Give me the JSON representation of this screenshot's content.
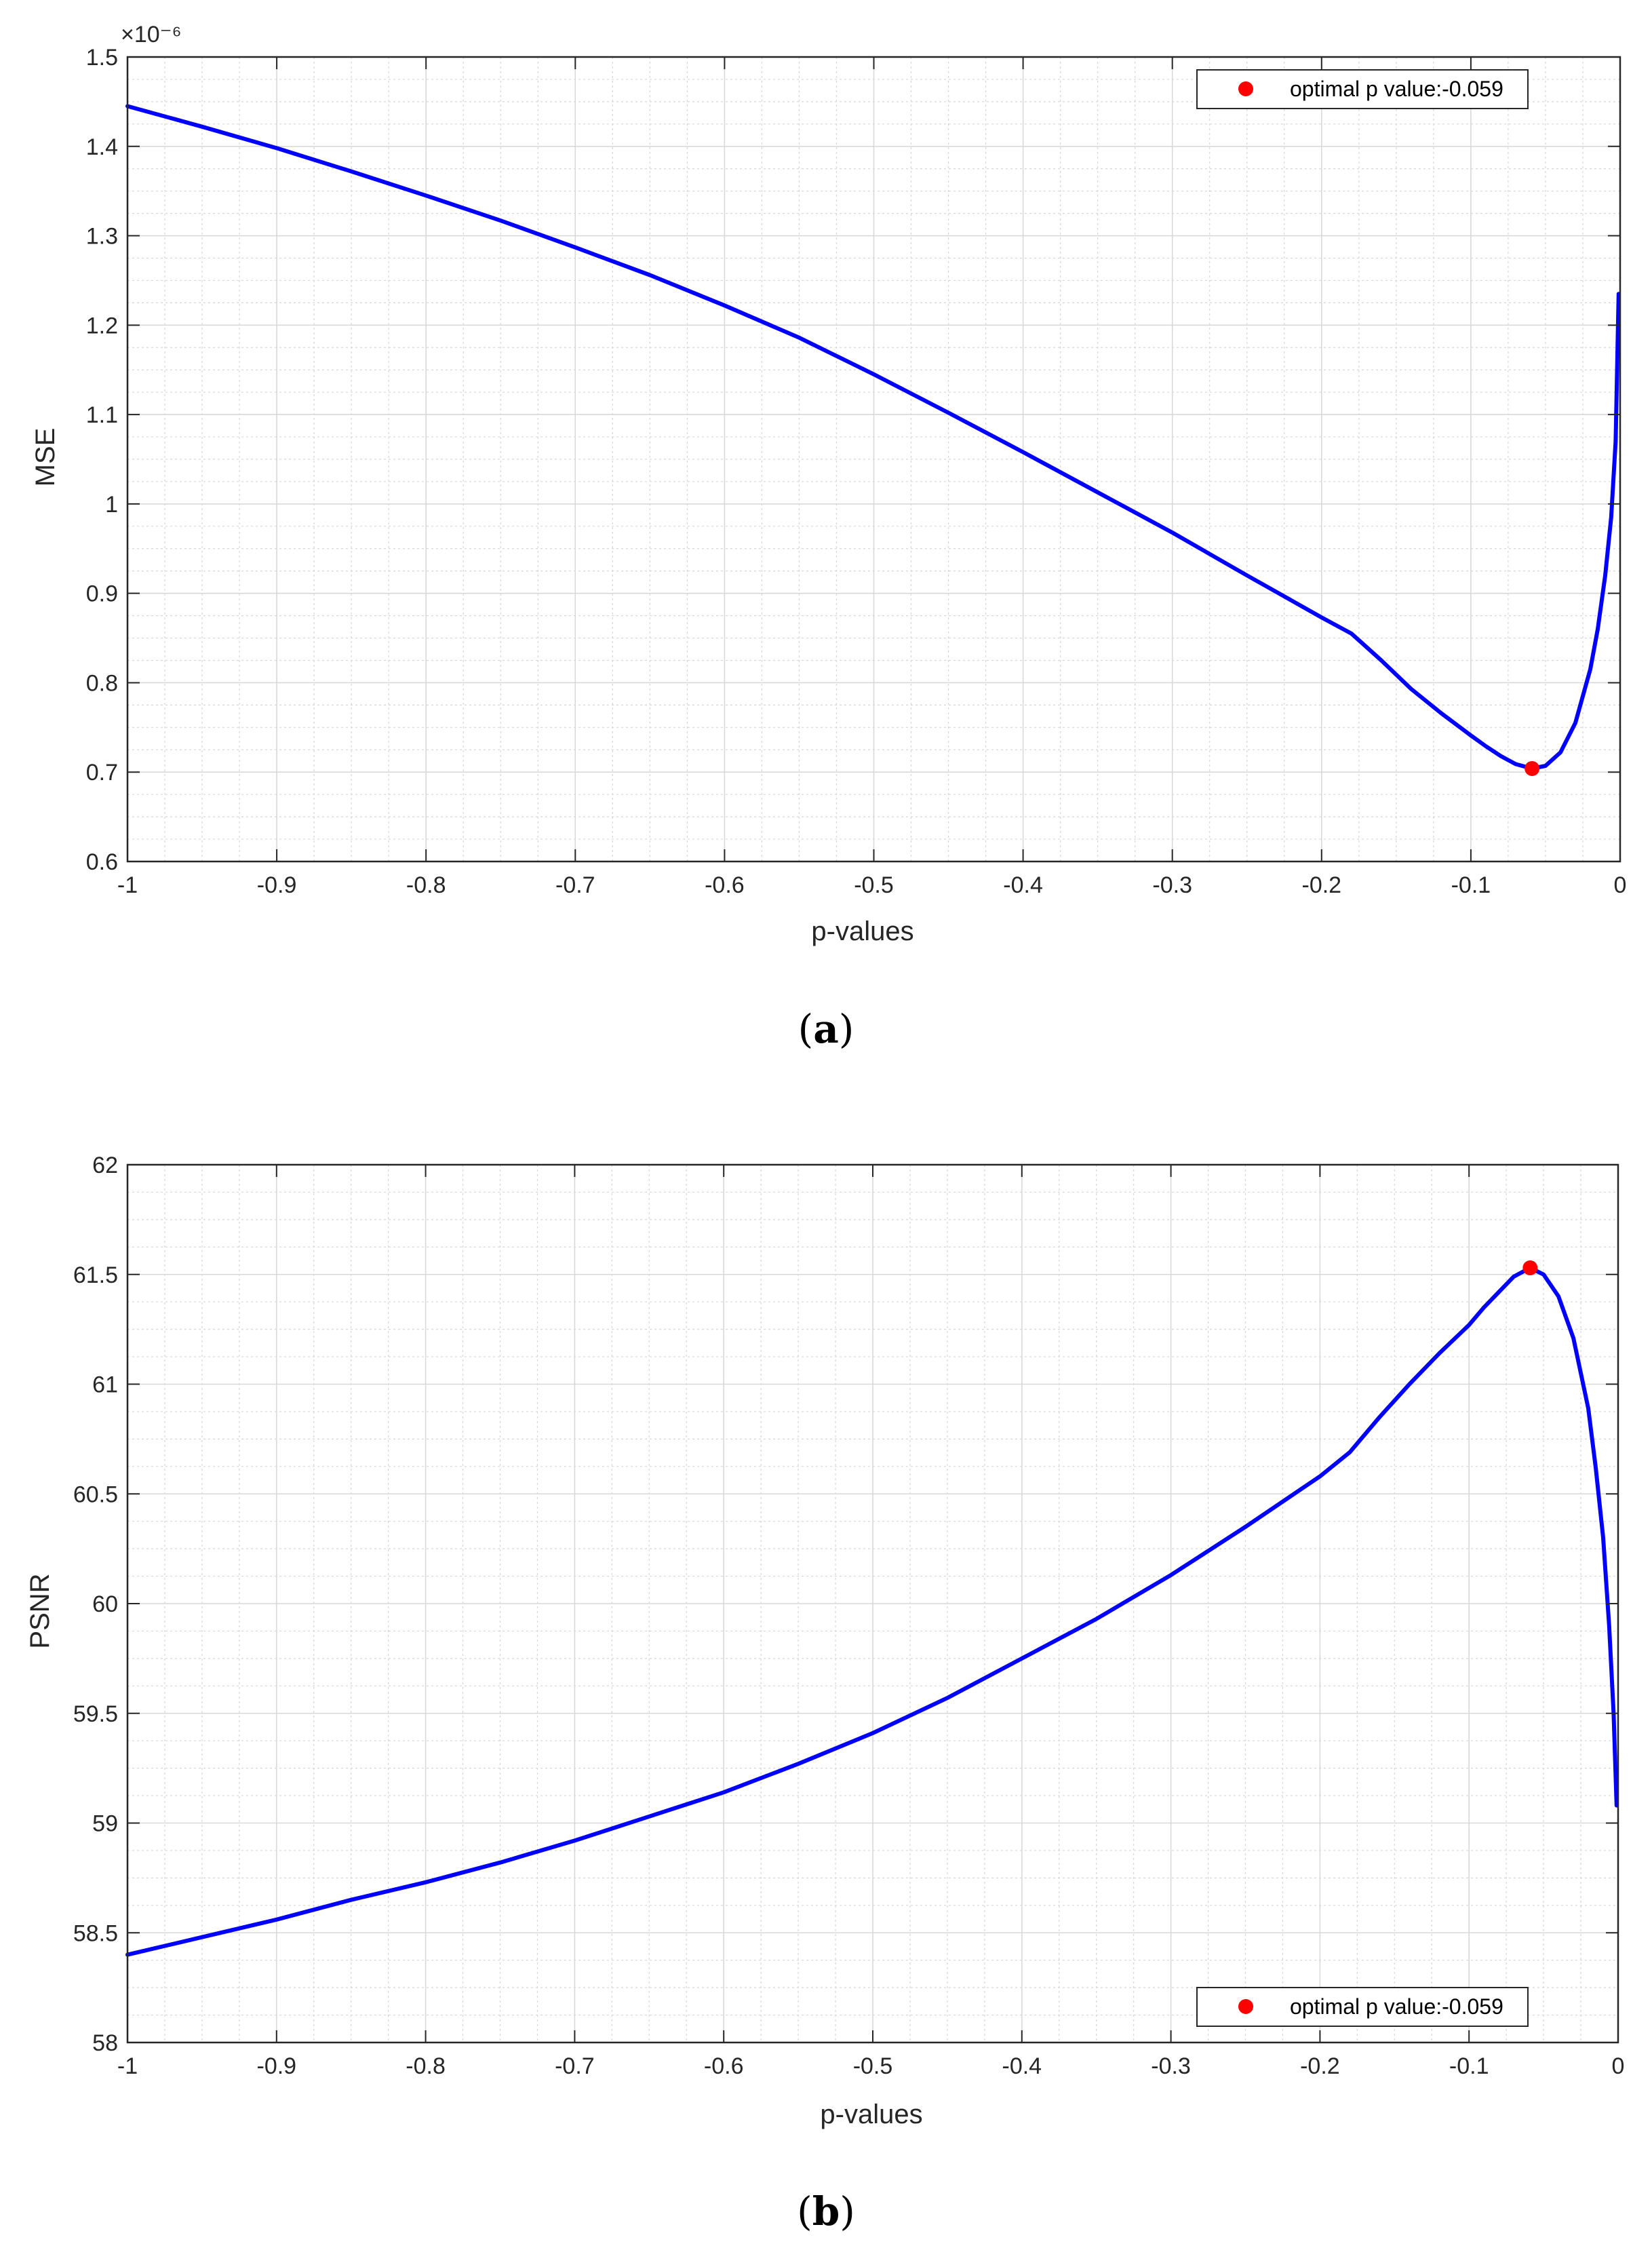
{
  "chart_data": [
    {
      "panel": "(a)",
      "type": "line",
      "xlabel": "p-values",
      "ylabel": "MSE",
      "y_exponent_label": "×10⁻⁶",
      "xlim": [
        -1,
        0
      ],
      "ylim": [
        0.6,
        1.5
      ],
      "xticks": [
        -1,
        -0.9,
        -0.8,
        -0.7,
        -0.6,
        -0.5,
        -0.4,
        -0.3,
        -0.2,
        -0.1,
        0
      ],
      "xtick_labels": [
        "-1",
        "-0.9",
        "-0.8",
        "-0.7",
        "-0.6",
        "-0.5",
        "-0.4",
        "-0.3",
        "-0.2",
        "-0.1",
        "0"
      ],
      "yticks": [
        0.6,
        0.7,
        0.8,
        0.9,
        1,
        1.1,
        1.2,
        1.3,
        1.4,
        1.5
      ],
      "ytick_labels": [
        "0.6",
        "0.7",
        "0.8",
        "0.9",
        "1",
        "1.1",
        "1.2",
        "1.3",
        "1.4",
        "1.5"
      ],
      "grid": true,
      "minor_grid": true,
      "legend_position": "top-right",
      "series": [
        {
          "color": "#0000ff",
          "x": [
            -1,
            -0.95,
            -0.9,
            -0.85,
            -0.8,
            -0.75,
            -0.7,
            -0.65,
            -0.6,
            -0.55,
            -0.5,
            -0.45,
            -0.4,
            -0.35,
            -0.3,
            -0.25,
            -0.2,
            -0.18,
            -0.16,
            -0.14,
            -0.12,
            -0.1,
            -0.09,
            -0.08,
            -0.07,
            -0.059,
            -0.05,
            -0.04,
            -0.03,
            -0.02,
            -0.015,
            -0.01,
            -0.006,
            -0.003,
            -0.001
          ],
          "y": [
            1.445,
            1.422,
            1.398,
            1.372,
            1.345,
            1.317,
            1.287,
            1.256,
            1.222,
            1.186,
            1.145,
            1.102,
            1.058,
            1.013,
            0.968,
            0.92,
            0.873,
            0.855,
            0.825,
            0.793,
            0.766,
            0.741,
            0.729,
            0.718,
            0.709,
            0.704,
            0.707,
            0.722,
            0.755,
            0.815,
            0.86,
            0.92,
            0.985,
            1.07,
            1.235
          ]
        },
        {
          "name": "optimal p value:-0.059",
          "type": "scatter",
          "color": "#ff0000",
          "x": [
            -0.059
          ],
          "y": [
            0.704
          ]
        }
      ]
    },
    {
      "panel": "(b)",
      "type": "line",
      "xlabel": "p-values",
      "ylabel": "PSNR",
      "xlim": [
        -1,
        0
      ],
      "ylim": [
        58,
        62
      ],
      "xticks": [
        -1,
        -0.9,
        -0.8,
        -0.7,
        -0.6,
        -0.5,
        -0.4,
        -0.3,
        -0.2,
        -0.1,
        0
      ],
      "xtick_labels": [
        "-1",
        "-0.9",
        "-0.8",
        "-0.7",
        "-0.6",
        "-0.5",
        "-0.4",
        "-0.3",
        "-0.2",
        "-0.1",
        "0"
      ],
      "yticks": [
        58,
        58.5,
        59,
        59.5,
        60,
        60.5,
        61,
        61.5,
        62
      ],
      "ytick_labels": [
        "58",
        "58.5",
        "59",
        "59.5",
        "60",
        "60.5",
        "61",
        "61.5",
        "62"
      ],
      "grid": true,
      "minor_grid": true,
      "legend_position": "bottom-right",
      "series": [
        {
          "color": "#0000ff",
          "x": [
            -1,
            -0.95,
            -0.9,
            -0.85,
            -0.8,
            -0.75,
            -0.7,
            -0.65,
            -0.6,
            -0.55,
            -0.5,
            -0.45,
            -0.4,
            -0.35,
            -0.3,
            -0.25,
            -0.2,
            -0.18,
            -0.16,
            -0.14,
            -0.12,
            -0.1,
            -0.09,
            -0.08,
            -0.07,
            -0.059,
            -0.05,
            -0.04,
            -0.03,
            -0.02,
            -0.015,
            -0.01,
            -0.006,
            -0.003,
            -0.001
          ],
          "y": [
            58.4,
            58.48,
            58.56,
            58.65,
            58.73,
            58.82,
            58.92,
            59.03,
            59.14,
            59.27,
            59.41,
            59.57,
            59.75,
            59.93,
            60.13,
            60.35,
            60.58,
            60.69,
            60.85,
            61.0,
            61.14,
            61.27,
            61.35,
            61.42,
            61.49,
            61.53,
            61.5,
            61.4,
            61.21,
            60.89,
            60.62,
            60.3,
            59.9,
            59.5,
            59.08
          ]
        },
        {
          "name": "optimal p value:-0.059",
          "type": "scatter",
          "color": "#ff0000",
          "x": [
            -0.059
          ],
          "y": [
            61.53
          ]
        }
      ]
    }
  ]
}
